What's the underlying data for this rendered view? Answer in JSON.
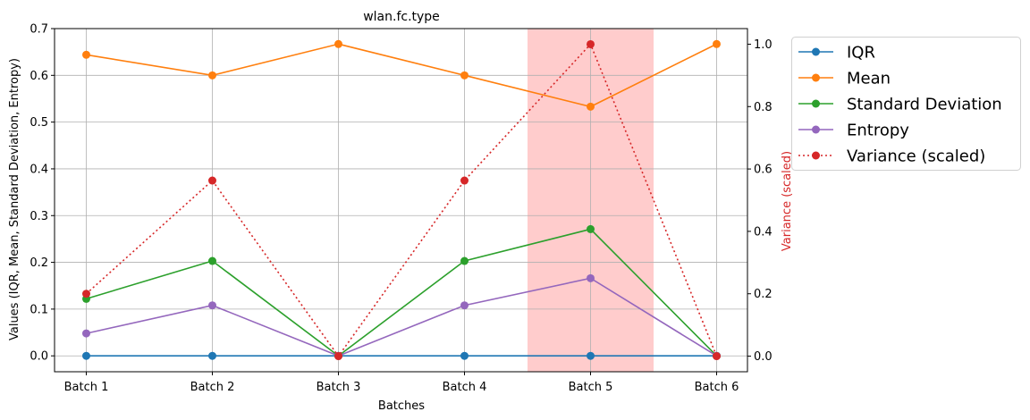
{
  "chart_data": {
    "type": "line",
    "title": "wlan.fc.type",
    "xlabel": "Batches",
    "ylabel": "Values (IQR, Mean, Standard Deviation, Entropy)",
    "y2label": "Variance (scaled)",
    "categories": [
      "Batch 1",
      "Batch 2",
      "Batch 3",
      "Batch 4",
      "Batch 5",
      "Batch 6"
    ],
    "ylim": [
      -0.034,
      0.7
    ],
    "yticks": [
      "0.0",
      "0.1",
      "0.2",
      "0.3",
      "0.4",
      "0.5",
      "0.6",
      "0.7"
    ],
    "y2lim": [
      -0.05,
      1.05
    ],
    "y2ticks": [
      "0.0",
      "0.2",
      "0.4",
      "0.6",
      "0.8",
      "1.0"
    ],
    "grid": true,
    "legend_position": "outside-right",
    "highlight": {
      "category": "Batch 5",
      "color": "#ff9a9a"
    },
    "series": [
      {
        "name": "IQR",
        "axis": "left",
        "color": "#1f77b4",
        "style": "solid",
        "values": [
          0,
          0,
          0,
          0,
          0,
          0
        ]
      },
      {
        "name": "Mean",
        "axis": "left",
        "color": "#ff7f0e",
        "style": "solid",
        "values": [
          0.644,
          0.6,
          0.667,
          0.6,
          0.533,
          0.667
        ]
      },
      {
        "name": "Standard Deviation",
        "axis": "left",
        "color": "#2ca02c",
        "style": "solid",
        "values": [
          0.122,
          0.203,
          0,
          0.203,
          0.271,
          0
        ]
      },
      {
        "name": "Entropy",
        "axis": "left",
        "color": "#9467bd",
        "style": "solid",
        "values": [
          0.048,
          0.108,
          0,
          0.108,
          0.166,
          0
        ]
      },
      {
        "name": "Variance (scaled)",
        "axis": "right",
        "color": "#d62728",
        "style": "dotted",
        "values": [
          0.2,
          0.563,
          0,
          0.563,
          1.0,
          0
        ]
      }
    ]
  }
}
